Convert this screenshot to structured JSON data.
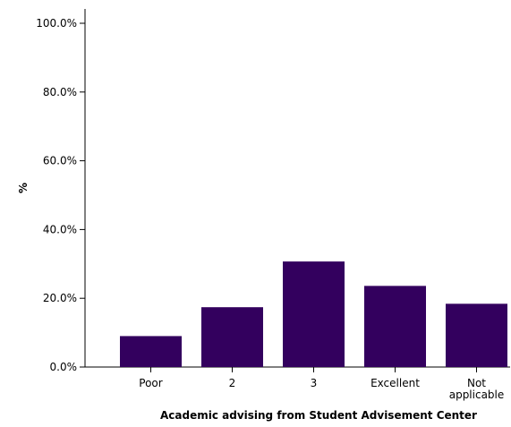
{
  "chart_data": {
    "type": "bar",
    "categories": [
      [
        "Poor"
      ],
      [
        "2"
      ],
      [
        "3"
      ],
      [
        "Excellent"
      ],
      [
        "Not",
        "applicable"
      ]
    ],
    "values": [
      9.0,
      17.4,
      30.7,
      23.6,
      18.4
    ],
    "ylim": [
      0,
      100
    ],
    "yticks": [
      "0.0%",
      "20.0%",
      "40.0%",
      "60.0%",
      "80.0%",
      "100.0%"
    ],
    "ytick_values": [
      0,
      20,
      40,
      60,
      80,
      100
    ],
    "xlabel": "Academic advising from Student Advisement Center",
    "ylabel": "%",
    "grid": false,
    "bar_color": "#33005e"
  }
}
